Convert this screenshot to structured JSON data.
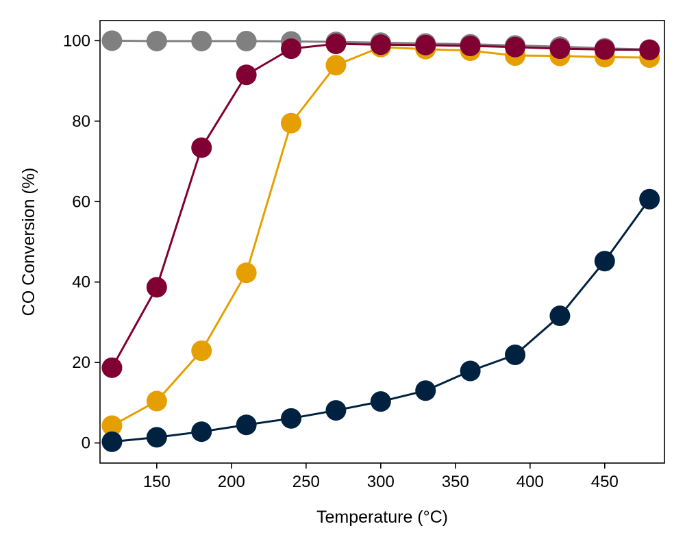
{
  "chart_data": {
    "type": "line",
    "xlabel": "Temperature (°C)",
    "ylabel": "CO Conversion (%)",
    "xlim": [
      112,
      490
    ],
    "ylim": [
      -5,
      105
    ],
    "xticks": [
      150,
      200,
      250,
      300,
      350,
      400,
      450
    ],
    "yticks": [
      0,
      20,
      40,
      60,
      80,
      100
    ],
    "grid": false,
    "x": [
      120,
      150,
      180,
      210,
      240,
      270,
      300,
      330,
      360,
      390,
      420,
      450,
      480
    ],
    "series": [
      {
        "color": "#808080",
        "values": [
          100,
          99.9,
          99.9,
          99.9,
          99.8,
          99.7,
          99.5,
          99.3,
          99.1,
          98.8,
          98.5,
          98.1,
          97.8
        ]
      },
      {
        "color": "#E69F00",
        "values": [
          4.3,
          10.4,
          22.9,
          42.3,
          79.5,
          93.9,
          98.4,
          97.9,
          97.5,
          96.3,
          96.2,
          95.9,
          95.8
        ]
      },
      {
        "color": "#800033",
        "values": [
          18.7,
          38.7,
          73.4,
          91.5,
          98.0,
          99.2,
          99.0,
          98.9,
          98.7,
          98.4,
          98.0,
          97.8,
          97.7
        ]
      },
      {
        "color": "#002240",
        "values": [
          0.3,
          1.4,
          2.8,
          4.5,
          6.1,
          8.1,
          10.3,
          13.0,
          17.9,
          21.9,
          31.6,
          45.2,
          60.6
        ]
      }
    ]
  }
}
